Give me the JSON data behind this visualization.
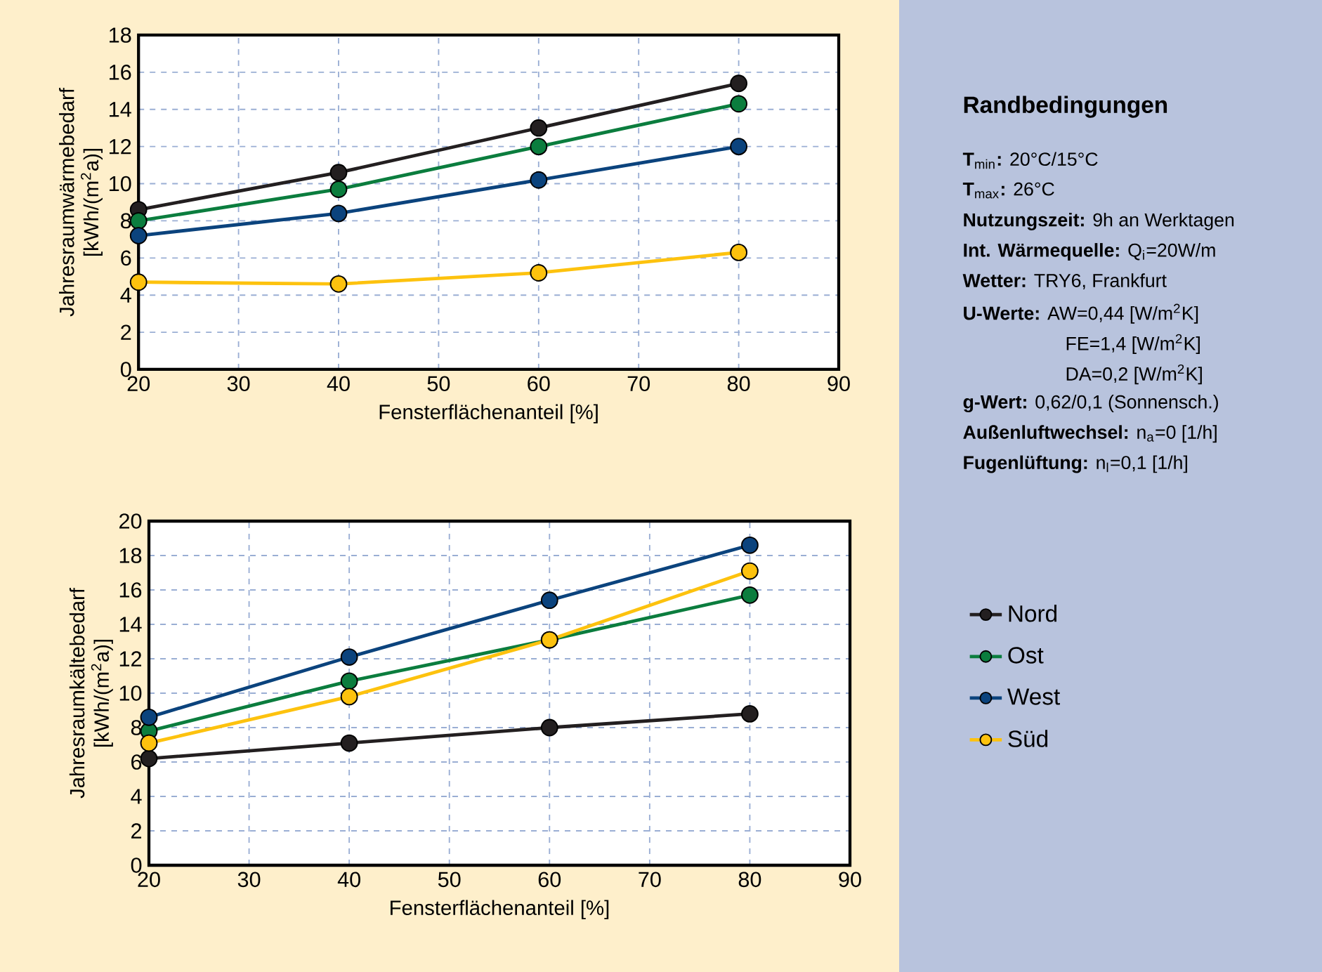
{
  "chart_data": [
    {
      "type": "line",
      "xlabel": "Fensterflächenanteil [%]",
      "ylabel": "Jahresraumwärmebedarf [kWh/(m$^{2}$a)]",
      "x": [
        20,
        40,
        60,
        80
      ],
      "xlim": [
        20,
        90
      ],
      "xticks": [
        20,
        30,
        40,
        50,
        60,
        70,
        80,
        90
      ],
      "ylim": [
        0,
        18
      ],
      "yticks": [
        0,
        2,
        4,
        6,
        8,
        10,
        12,
        14,
        16,
        18
      ],
      "grid": true,
      "marker": "circle",
      "line_style": "solid",
      "series": [
        {
          "color": "#231f20",
          "values": [
            8.6,
            10.6,
            13.0,
            15.4
          ]
        },
        {
          "color": "#0b7d3e",
          "values": [
            8.0,
            9.7,
            12.0,
            14.3
          ]
        },
        {
          "color": "#0b437d",
          "values": [
            7.2,
            8.4,
            10.2,
            12.0
          ]
        },
        {
          "color": "#fdc20e",
          "values": [
            4.7,
            4.6,
            5.2,
            6.3
          ]
        }
      ]
    },
    {
      "type": "line",
      "xlabel": "Fensterflächenanteil [%]",
      "ylabel": "Jahresraumkältebedarf [kWh/(m$^{2}$a)]",
      "x": [
        20,
        40,
        60,
        80
      ],
      "xlim": [
        20,
        90
      ],
      "xticks": [
        20,
        30,
        40,
        50,
        60,
        70,
        80,
        90
      ],
      "ylim": [
        0,
        20
      ],
      "yticks": [
        0,
        2,
        4,
        6,
        8,
        10,
        12,
        14,
        16,
        18,
        20
      ],
      "grid": true,
      "marker": "circle",
      "line_style": "solid",
      "legend": "right",
      "series": [
        {
          "name": "Nord",
          "color": "#231f20",
          "values": [
            6.2,
            7.1,
            8.0,
            8.8
          ]
        },
        {
          "name": "Ost",
          "color": "#0b7d3e",
          "values": [
            7.8,
            10.7,
            13.1,
            15.7
          ]
        },
        {
          "name": "West",
          "color": "#0b437d",
          "values": [
            8.6,
            12.1,
            15.4,
            18.6
          ]
        },
        {
          "name": "Süd",
          "color": "#fdc20e",
          "values": [
            7.1,
            9.8,
            13.1,
            17.1
          ]
        }
      ]
    },
    {
      "type": "other",
      "title": "Randbedingungen",
      "annotations": [
        "**T**$_{min}$**:** 20°C/15°C",
        "**T**$_{max}$**:** 26°C",
        "**Nutzungszeit:** 9h an Werktagen",
        "**Int. Wärmequelle:** Q$_{i}$=20W/m",
        "**Wetter:** TRY6, Frankfurt",
        "**U-Werte:** AW=0,44 [W/m$^{2}$K]",
        "FE=1,4 [W/m$^{2}$K]",
        "DA=0,2 [W/m$^{2}$K]",
        "**g-Wert:** 0,62/0,1 (Sonnensch.)",
        "**Außenluftwechsel:** n$_{a}$=0 [1/h]",
        "**Fugenlüftung:** n$_{l}$=0,1 [1/h]"
      ]
    }
  ]
}
